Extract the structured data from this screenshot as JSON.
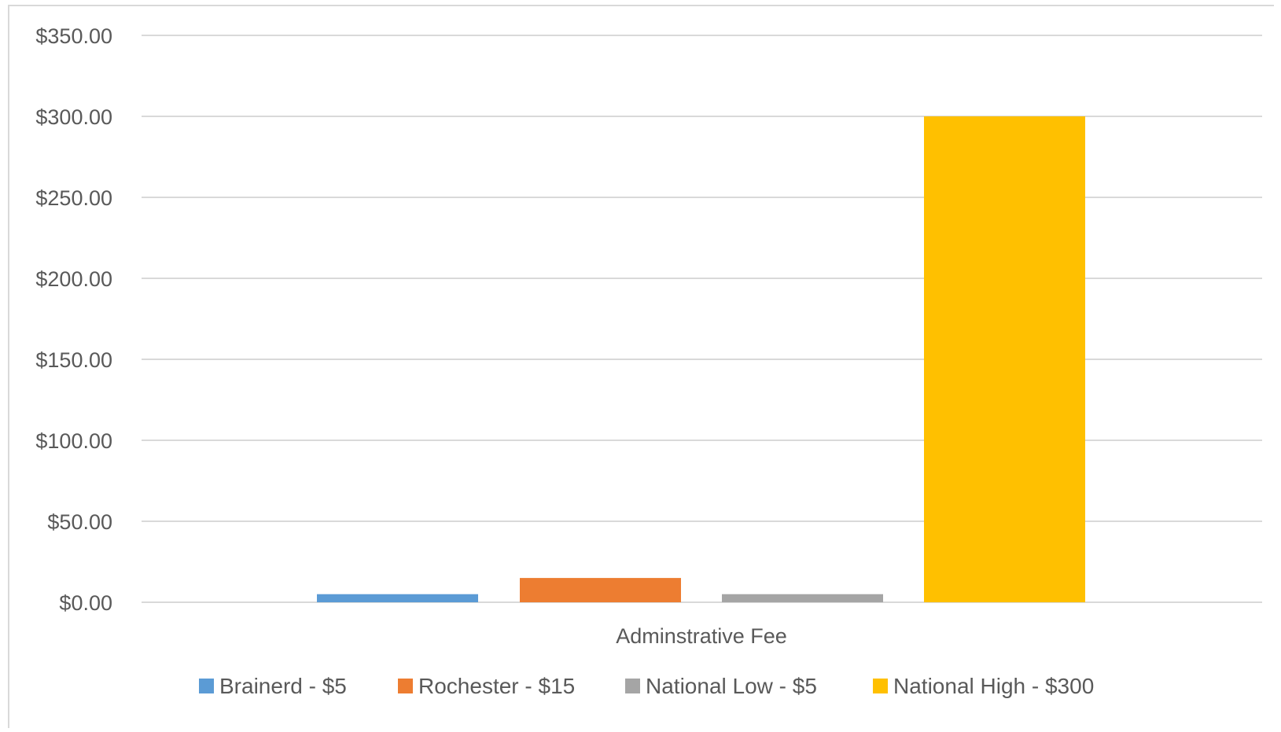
{
  "chart_data": {
    "type": "bar",
    "title": "",
    "xlabel": "",
    "ylabel": "",
    "categories": [
      "Adminstrative Fee"
    ],
    "series": [
      {
        "name": "Brainerd - $5",
        "values": [
          5
        ],
        "color": "#5b9bd5"
      },
      {
        "name": "Rochester - $15",
        "values": [
          15
        ],
        "color": "#ed7d31"
      },
      {
        "name": "National Low - $5",
        "values": [
          5
        ],
        "color": "#a5a5a5"
      },
      {
        "name": "National High - $300",
        "values": [
          300
        ],
        "color": "#ffc000"
      }
    ],
    "ylim": [
      0,
      350
    ],
    "yticks": [
      0,
      50,
      100,
      150,
      200,
      250,
      300,
      350
    ],
    "ytick_labels": [
      "$0.00",
      "$50.00",
      "$100.00",
      "$150.00",
      "$200.00",
      "$250.00",
      "$300.00",
      "$350.00"
    ],
    "grid": true,
    "legend_position": "bottom"
  }
}
